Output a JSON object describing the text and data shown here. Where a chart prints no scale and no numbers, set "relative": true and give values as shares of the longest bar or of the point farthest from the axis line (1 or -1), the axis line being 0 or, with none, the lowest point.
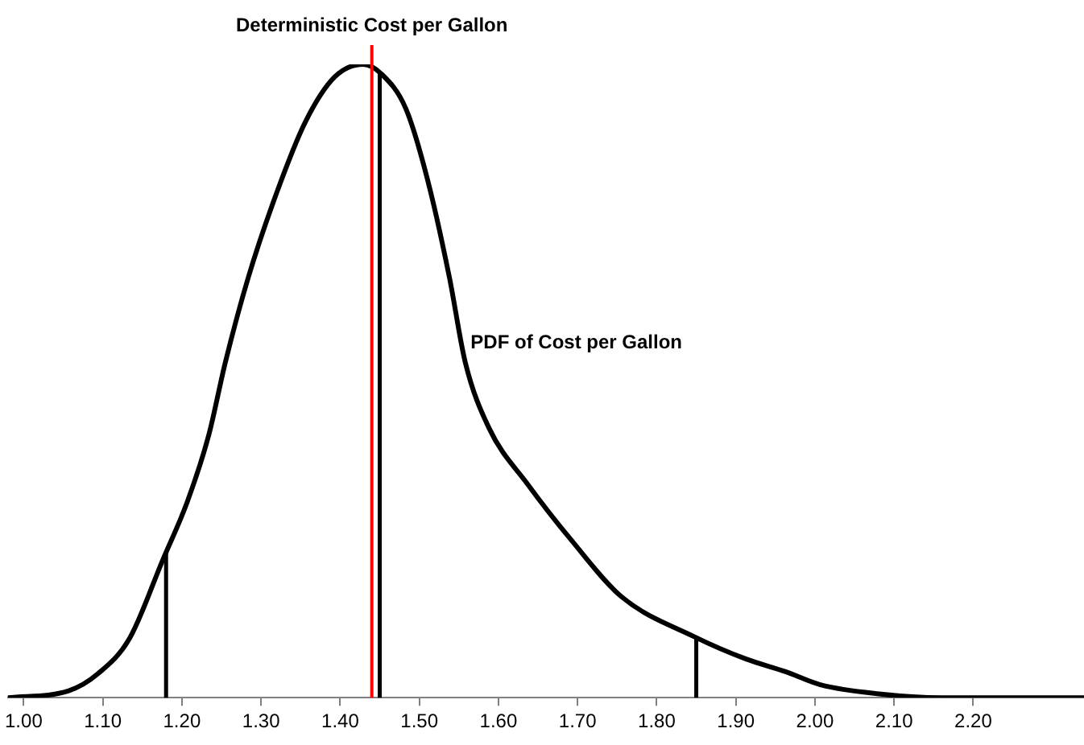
{
  "chart_data": {
    "type": "line",
    "relative": true,
    "marker": "none",
    "line_style": "solid",
    "xlim": [
      0.98,
      2.34
    ],
    "xticks": [
      {
        "value": 1,
        "label": "1.00"
      },
      {
        "value": 1.1,
        "label": "1.10"
      },
      {
        "value": 1.2,
        "label": "1.20"
      },
      {
        "value": 1.3,
        "label": "1.30"
      },
      {
        "value": 1.4,
        "label": "1.40"
      },
      {
        "value": 1.5,
        "label": "1.50"
      },
      {
        "value": 1.6,
        "label": "1.60"
      },
      {
        "value": 1.7,
        "label": "1.70"
      },
      {
        "value": 1.8,
        "label": "1.80"
      },
      {
        "value": 1.9,
        "label": "1.90"
      },
      {
        "value": 2,
        "label": "2.00"
      },
      {
        "value": 2.1,
        "label": "2.10"
      },
      {
        "value": 2.2,
        "label": "2.20"
      }
    ],
    "series": [
      {
        "name": "PDF of Cost per Gallon",
        "color": "#000000",
        "x": [
          0.98,
          1.057,
          1.094,
          1.134,
          1.176,
          1.207,
          1.234,
          1.255,
          1.284,
          1.32,
          1.356,
          1.393,
          1.429,
          1.452,
          1.483,
          1.51,
          1.538,
          1.558,
          1.588,
          1.637,
          1.692,
          1.755,
          1.848,
          1.913,
          1.963,
          2.008,
          2.081,
          2.16,
          2.34
        ],
        "values": [
          0,
          0.011,
          0.038,
          0.094,
          0.218,
          0.31,
          0.415,
          0.53,
          0.664,
          0.798,
          0.909,
          0.98,
          1,
          0.985,
          0.93,
          0.82,
          0.664,
          0.53,
          0.426,
          0.337,
          0.249,
          0.16,
          0.096,
          0.061,
          0.041,
          0.02,
          0.006,
          0,
          0
        ]
      }
    ],
    "ref_lines": [
      {
        "axis": "x",
        "value": 1.44,
        "label": "Deterministic Cost per Gallon",
        "color": "#ff0000"
      },
      {
        "axis": "x",
        "value": 1.18,
        "color": "#000000"
      },
      {
        "axis": "x",
        "value": 1.45,
        "color": "#000000"
      },
      {
        "axis": "x",
        "value": 1.85,
        "color": "#000000"
      }
    ]
  }
}
